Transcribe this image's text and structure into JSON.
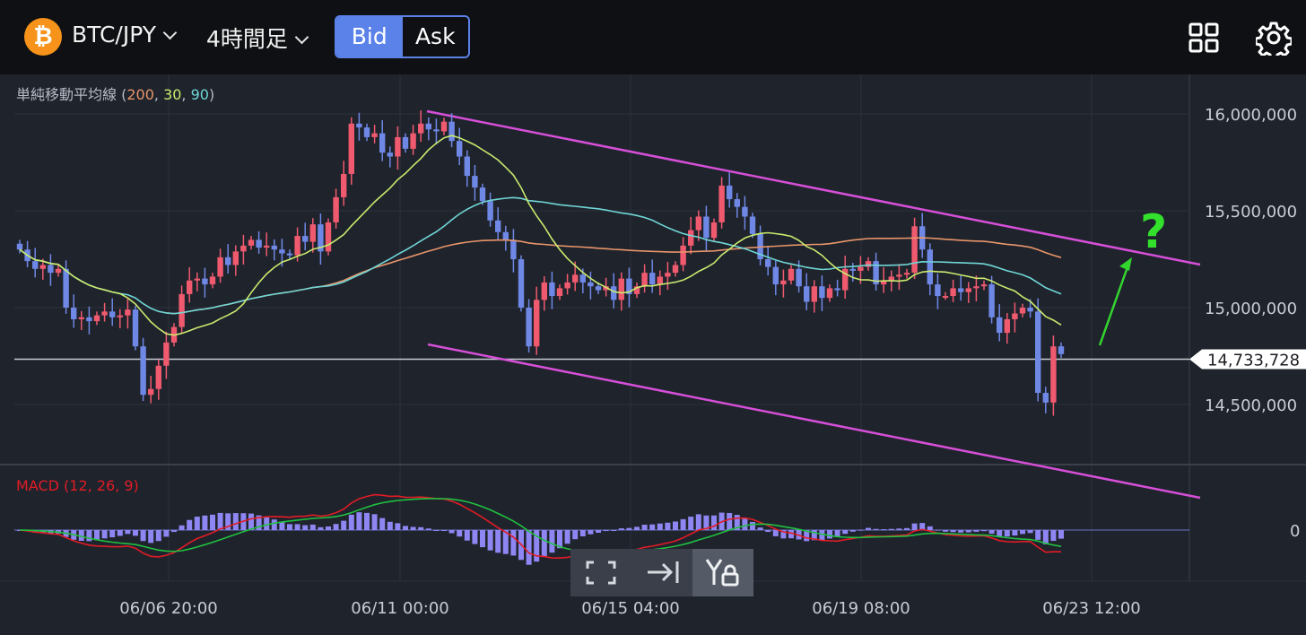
{
  "header": {
    "pair": "BTC/JPY",
    "timeframe": "4時間足",
    "bid_label": "Bid",
    "ask_label": "Ask",
    "btc_symbol": "₿",
    "icons": [
      "bitcoin-logo-icon",
      "chevron-down-icon",
      "grid-icon",
      "gear-icon"
    ]
  },
  "indicators": {
    "sma_label": "単純移動平均線",
    "sma_params": [
      "200",
      "30",
      "90"
    ],
    "macd_label": "MACD (12, 26, 9)",
    "macd_zero": "0"
  },
  "toolbar": {
    "icons": [
      "expand-icon",
      "jump-to-latest-icon",
      "y-axis-lock-icon"
    ]
  },
  "annotation": "?",
  "chart_data": {
    "type": "candlestick",
    "price_axis": {
      "ticks": [
        16000000,
        15500000,
        15000000,
        14500000
      ],
      "tick_labels": [
        "16,000,000",
        "15,500,000",
        "15,000,000",
        "14,500,000"
      ],
      "current_price": 14733728,
      "current_price_label": "14,733,728"
    },
    "time_axis": {
      "tick_labels": [
        "06/06 20:00",
        "06/11 00:00",
        "06/15 04:00",
        "06/19 08:00",
        "06/23 12:00"
      ]
    },
    "colors": {
      "up": "#ef5a6f",
      "down": "#6f88e6",
      "sma200": "#e8956a",
      "sma30": "#c9ea6e",
      "sma90": "#6fd6d6",
      "macd": "#e21c26",
      "signal": "#20c040",
      "histogram": "#8e86f2",
      "trendline": "#d64fd8",
      "arrow": "#33d62f"
    },
    "series": [
      {
        "name": "200",
        "color": "#e8956a"
      },
      {
        "name": "30",
        "color": "#c9ea6e"
      },
      {
        "name": "90",
        "color": "#6fd6d6"
      }
    ],
    "closes": [
      15300000,
      15240000,
      15200000,
      15220000,
      15180000,
      15200000,
      15000000,
      14940000,
      14950000,
      14930000,
      14960000,
      14980000,
      14950000,
      14960000,
      14990000,
      14800000,
      14550000,
      14580000,
      14700000,
      14820000,
      14900000,
      15070000,
      15140000,
      15150000,
      15120000,
      15160000,
      15260000,
      15220000,
      15290000,
      15320000,
      15350000,
      15310000,
      15320000,
      15300000,
      15280000,
      15270000,
      15370000,
      15340000,
      15430000,
      15290000,
      15440000,
      15570000,
      15690000,
      15950000,
      15930000,
      15880000,
      15900000,
      15800000,
      15780000,
      15880000,
      15820000,
      15900000,
      15950000,
      15920000,
      15910000,
      15960000,
      15860000,
      15780000,
      15680000,
      15620000,
      15550000,
      15450000,
      15390000,
      15350000,
      15250000,
      15000000,
      14800000,
      15040000,
      15130000,
      15060000,
      15100000,
      15130000,
      15170000,
      15130000,
      15110000,
      15090000,
      15110000,
      15040000,
      15150000,
      15070000,
      15110000,
      15180000,
      15120000,
      15160000,
      15180000,
      15220000,
      15320000,
      15400000,
      15470000,
      15360000,
      15440000,
      15630000,
      15560000,
      15520000,
      15470000,
      15380000,
      15250000,
      15210000,
      15120000,
      15140000,
      15200000,
      15110000,
      15030000,
      15110000,
      15050000,
      15100000,
      15090000,
      15200000,
      15190000,
      15210000,
      15240000,
      15120000,
      15140000,
      15160000,
      15170000,
      15180000,
      15420000,
      15300000,
      15120000,
      15060000,
      15060000,
      15100000,
      15080000,
      15100000,
      15110000,
      15120000,
      14950000,
      14870000,
      14940000,
      14970000,
      15000000,
      14980000,
      14560000,
      14510000,
      14800000,
      14760000
    ]
  }
}
